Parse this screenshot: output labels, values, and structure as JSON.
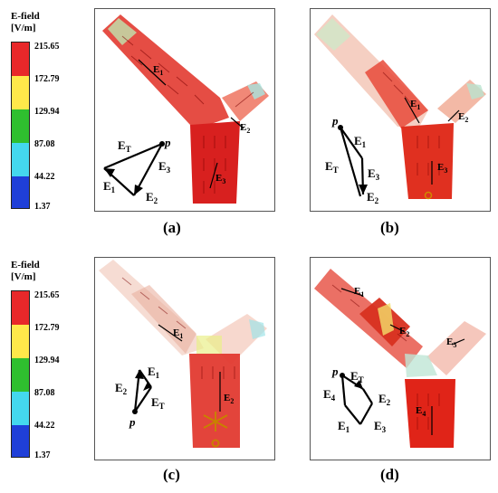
{
  "legend": {
    "title_line1": "E-field",
    "title_line2": "[V/m]",
    "ticks": [
      "215.65",
      "172.79",
      "129.94",
      "87.08",
      "44.22",
      "1.37"
    ],
    "colors": [
      "#e8282a",
      "#ffe84a",
      "#2fbf2f",
      "#44d8ee",
      "#1f3fd8"
    ]
  },
  "panels": {
    "a": {
      "caption": "(a)",
      "labels": {
        "E1": "E",
        "E2": "E",
        "E3": "E",
        "ET": "E",
        "p": "p",
        "s1": "1",
        "s2": "2",
        "s3": "3",
        "sT": "T"
      }
    },
    "b": {
      "caption": "(b)",
      "labels": {
        "E1": "E",
        "E2": "E",
        "E3": "E",
        "ET": "E",
        "p": "p",
        "s1": "1",
        "s2": "2",
        "s3": "3",
        "sT": "T"
      }
    },
    "c": {
      "caption": "(c)",
      "labels": {
        "E1": "E",
        "E2": "E",
        "ET": "E",
        "p": "p",
        "s1": "1",
        "s2": "2",
        "sT": "T"
      }
    },
    "d": {
      "caption": "(d)",
      "labels": {
        "E1": "E",
        "E2": "E",
        "E3": "E",
        "E4": "E",
        "ET": "E",
        "p": "p",
        "s1": "1",
        "s2": "2",
        "s3": "3",
        "s4": "4",
        "sT": "T"
      }
    }
  }
}
